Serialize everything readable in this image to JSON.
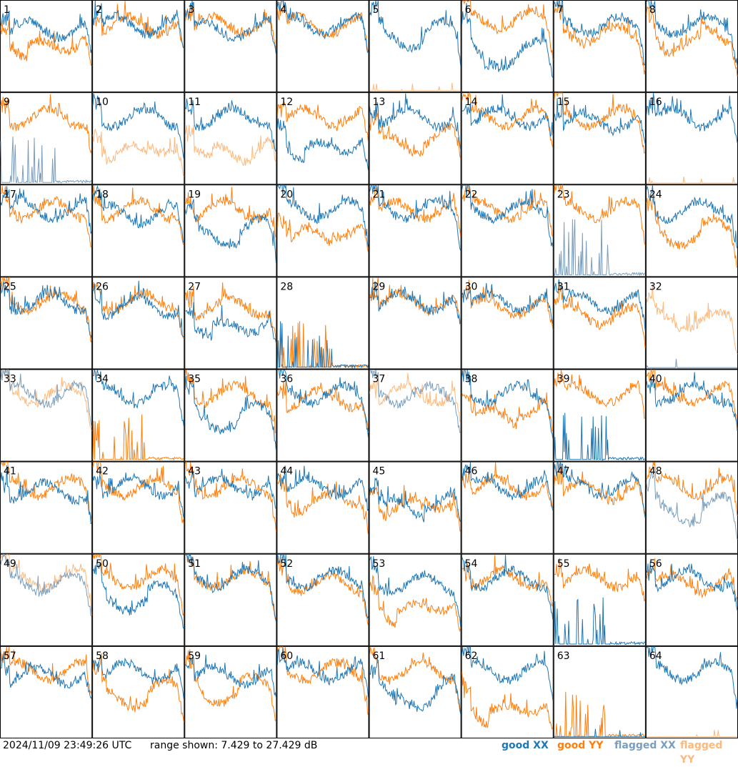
{
  "chart_data": {
    "type": "line",
    "title": "",
    "layout": "8x8 small multiples",
    "xlabel": "",
    "ylabel": "",
    "ylim": [
      7.429,
      27.429
    ],
    "y_unit": "dB",
    "grid": false,
    "legend_position": "bottom-right",
    "series_legend": [
      {
        "name": "good XX",
        "color": "#1f77b4"
      },
      {
        "name": "good YY",
        "color": "#ff7f0e"
      },
      {
        "name": "flagged XX",
        "color": "#7b9ebd"
      },
      {
        "name": "flagged YY",
        "color": "#fdb97d"
      }
    ],
    "panels": [
      {
        "id": 1,
        "xx": "good",
        "yy": "good",
        "xx_shape": "normal",
        "yy_shape": "dip",
        "xx_level": 21,
        "yy_level": 20
      },
      {
        "id": 2,
        "xx": "good",
        "yy": "good",
        "xx_shape": "normal",
        "yy_shape": "normal",
        "xx_level": 22,
        "yy_level": 22
      },
      {
        "id": 3,
        "xx": "good",
        "yy": "good",
        "xx_shape": "normal",
        "yy_shape": "normal",
        "xx_level": 21,
        "yy_level": 22
      },
      {
        "id": 4,
        "xx": "good",
        "yy": "good",
        "xx_shape": "normal",
        "yy_shape": "normal",
        "xx_level": 22,
        "yy_level": 22
      },
      {
        "id": 5,
        "xx": "good",
        "yy": "flagged",
        "xx_shape": "sag",
        "yy_shape": "dead",
        "xx_level": 22,
        "yy_level": 8
      },
      {
        "id": 6,
        "xx": "good",
        "yy": "good",
        "xx_shape": "dip",
        "yy_shape": "normal",
        "xx_level": 18,
        "yy_level": 23
      },
      {
        "id": 7,
        "xx": "good",
        "yy": "good",
        "xx_shape": "normal",
        "yy_shape": "normal",
        "xx_level": 22,
        "yy_level": 20
      },
      {
        "id": 8,
        "xx": "good",
        "yy": "good",
        "xx_shape": "normal",
        "yy_shape": "sag",
        "xx_level": 22,
        "yy_level": 21
      },
      {
        "id": 9,
        "xx": "flagged",
        "yy": "good",
        "xx_shape": "spiky",
        "yy_shape": "normal",
        "xx_level": 8,
        "yy_level": 22
      },
      {
        "id": 10,
        "xx": "good",
        "yy": "flagged",
        "xx_shape": "normal",
        "yy_shape": "sag",
        "xx_level": 22,
        "yy_level": 17
      },
      {
        "id": 11,
        "xx": "good",
        "yy": "flagged",
        "xx_shape": "normal",
        "yy_shape": "dip",
        "xx_level": 22,
        "yy_level": 17
      },
      {
        "id": 12,
        "xx": "good",
        "yy": "good",
        "xx_shape": "dip",
        "yy_shape": "normal",
        "xx_level": 18,
        "yy_level": 22
      },
      {
        "id": 13,
        "xx": "good",
        "yy": "good",
        "xx_shape": "normal",
        "yy_shape": "sag",
        "xx_level": 22,
        "yy_level": 19
      },
      {
        "id": 14,
        "xx": "good",
        "yy": "good",
        "xx_shape": "normal",
        "yy_shape": "normal",
        "xx_level": 22,
        "yy_level": 22
      },
      {
        "id": 15,
        "xx": "good",
        "yy": "good",
        "xx_shape": "normal",
        "yy_shape": "normal",
        "xx_level": 21,
        "yy_level": 22
      },
      {
        "id": 16,
        "xx": "good",
        "yy": "flagged",
        "xx_shape": "normal",
        "yy_shape": "dead",
        "xx_level": 22,
        "yy_level": 8
      },
      {
        "id": 17,
        "xx": "good",
        "yy": "good",
        "xx_shape": "normal",
        "yy_shape": "normal",
        "xx_level": 22,
        "yy_level": 22
      },
      {
        "id": 18,
        "xx": "good",
        "yy": "good",
        "xx_shape": "normal",
        "yy_shape": "normal",
        "xx_level": 21,
        "yy_level": 22
      },
      {
        "id": 19,
        "xx": "good",
        "yy": "good",
        "xx_shape": "sag",
        "yy_shape": "normal",
        "xx_level": 19,
        "yy_level": 22
      },
      {
        "id": 20,
        "xx": "good",
        "yy": "good",
        "xx_shape": "normal",
        "yy_shape": "sag",
        "xx_level": 22,
        "yy_level": 19
      },
      {
        "id": 21,
        "xx": "good",
        "yy": "good",
        "xx_shape": "normal",
        "yy_shape": "normal",
        "xx_level": 22,
        "yy_level": 22
      },
      {
        "id": 22,
        "xx": "good",
        "yy": "good",
        "xx_shape": "normal",
        "yy_shape": "normal",
        "xx_level": 22,
        "yy_level": 22
      },
      {
        "id": 23,
        "xx": "flagged",
        "yy": "good",
        "xx_shape": "spiky",
        "yy_shape": "normal",
        "xx_level": 10,
        "yy_level": 22
      },
      {
        "id": 24,
        "xx": "good",
        "yy": "good",
        "xx_shape": "normal",
        "yy_shape": "sag",
        "xx_level": 22,
        "yy_level": 19
      },
      {
        "id": 25,
        "xx": "good",
        "yy": "good",
        "xx_shape": "normal",
        "yy_shape": "normal",
        "xx_level": 22,
        "yy_level": 22
      },
      {
        "id": 26,
        "xx": "good",
        "yy": "good",
        "xx_shape": "normal",
        "yy_shape": "normal",
        "xx_level": 21,
        "yy_level": 22
      },
      {
        "id": 27,
        "xx": "good",
        "yy": "good",
        "xx_shape": "dip",
        "yy_shape": "normal",
        "xx_level": 19,
        "yy_level": 21
      },
      {
        "id": 28,
        "xx": "good",
        "yy": "good",
        "xx_shape": "spiky",
        "yy_shape": "spiky",
        "xx_level": 8,
        "yy_level": 8
      },
      {
        "id": 29,
        "xx": "good",
        "yy": "good",
        "xx_shape": "normal",
        "yy_shape": "normal",
        "xx_level": 22,
        "yy_level": 22
      },
      {
        "id": 30,
        "xx": "good",
        "yy": "good",
        "xx_shape": "normal",
        "yy_shape": "normal",
        "xx_level": 22,
        "yy_level": 21
      },
      {
        "id": 31,
        "xx": "good",
        "yy": "good",
        "xx_shape": "normal",
        "yy_shape": "normal",
        "xx_level": 22,
        "yy_level": 19
      },
      {
        "id": 32,
        "xx": "flagged",
        "yy": "flagged",
        "xx_shape": "dead",
        "yy_shape": "normal",
        "xx_level": 8,
        "yy_level": 18
      },
      {
        "id": 33,
        "xx": "flagged",
        "yy": "flagged",
        "xx_shape": "normal",
        "yy_shape": "normal",
        "xx_level": 22,
        "yy_level": 22
      },
      {
        "id": 34,
        "xx": "good",
        "yy": "good",
        "xx_shape": "normal",
        "yy_shape": "spiky",
        "xx_level": 22,
        "yy_level": 8
      },
      {
        "id": 35,
        "xx": "good",
        "yy": "good",
        "xx_shape": "sag",
        "yy_shape": "normal",
        "xx_level": 19,
        "yy_level": 22
      },
      {
        "id": 36,
        "xx": "good",
        "yy": "good",
        "xx_shape": "normal",
        "yy_shape": "normal",
        "xx_level": 22,
        "yy_level": 21
      },
      {
        "id": 37,
        "xx": "flagged",
        "yy": "flagged",
        "xx_shape": "normal",
        "yy_shape": "normal",
        "xx_level": 22,
        "yy_level": 22
      },
      {
        "id": 38,
        "xx": "good",
        "yy": "good",
        "xx_shape": "normal",
        "yy_shape": "sag",
        "xx_level": 22,
        "yy_level": 20
      },
      {
        "id": 39,
        "xx": "good",
        "yy": "good",
        "xx_shape": "spiky",
        "yy_shape": "normal",
        "xx_level": 8,
        "yy_level": 22
      },
      {
        "id": 40,
        "xx": "good",
        "yy": "good",
        "xx_shape": "normal",
        "yy_shape": "normal",
        "xx_level": 22,
        "yy_level": 22
      },
      {
        "id": 41,
        "xx": "good",
        "yy": "good",
        "xx_shape": "normal",
        "yy_shape": "normal",
        "xx_level": 21,
        "yy_level": 22
      },
      {
        "id": 42,
        "xx": "good",
        "yy": "good",
        "xx_shape": "normal",
        "yy_shape": "normal",
        "xx_level": 22,
        "yy_level": 22
      },
      {
        "id": 43,
        "xx": "good",
        "yy": "good",
        "xx_shape": "normal",
        "yy_shape": "normal",
        "xx_level": 22,
        "yy_level": 22
      },
      {
        "id": 44,
        "xx": "good",
        "yy": "good",
        "xx_shape": "normal",
        "yy_shape": "sag",
        "xx_level": 22,
        "yy_level": 21
      },
      {
        "id": 45,
        "xx": "good",
        "yy": "good",
        "xx_shape": "sag",
        "yy_shape": "sag",
        "xx_level": 20,
        "yy_level": 20
      },
      {
        "id": 46,
        "xx": "good",
        "yy": "good",
        "xx_shape": "normal",
        "yy_shape": "normal",
        "xx_level": 22,
        "yy_level": 22
      },
      {
        "id": 47,
        "xx": "good",
        "yy": "good",
        "xx_shape": "normal",
        "yy_shape": "normal",
        "xx_level": 22,
        "yy_level": 21
      },
      {
        "id": 48,
        "xx": "flagged",
        "yy": "good",
        "xx_shape": "sag",
        "yy_shape": "normal",
        "xx_level": 19,
        "yy_level": 22
      },
      {
        "id": 49,
        "xx": "flagged",
        "yy": "flagged",
        "xx_shape": "normal",
        "yy_shape": "normal",
        "xx_level": 21,
        "yy_level": 22
      },
      {
        "id": 50,
        "xx": "good",
        "yy": "good",
        "xx_shape": "sag",
        "yy_shape": "normal",
        "xx_level": 20,
        "yy_level": 22
      },
      {
        "id": 51,
        "xx": "good",
        "yy": "good",
        "xx_shape": "normal",
        "yy_shape": "normal",
        "xx_level": 22,
        "yy_level": 22
      },
      {
        "id": 52,
        "xx": "good",
        "yy": "good",
        "xx_shape": "normal",
        "yy_shape": "normal",
        "xx_level": 22,
        "yy_level": 21
      },
      {
        "id": 53,
        "xx": "good",
        "yy": "good",
        "xx_shape": "normal",
        "yy_shape": "dip",
        "xx_level": 21,
        "yy_level": 18
      },
      {
        "id": 54,
        "xx": "good",
        "yy": "good",
        "xx_shape": "normal",
        "yy_shape": "normal",
        "xx_level": 22,
        "yy_level": 22
      },
      {
        "id": 55,
        "xx": "good",
        "yy": "good",
        "xx_shape": "spiky",
        "yy_shape": "normal",
        "xx_level": 8,
        "yy_level": 22
      },
      {
        "id": 56,
        "xx": "good",
        "yy": "good",
        "xx_shape": "normal",
        "yy_shape": "normal",
        "xx_level": 22,
        "yy_level": 21
      },
      {
        "id": 57,
        "xx": "good",
        "yy": "good",
        "xx_shape": "normal",
        "yy_shape": "normal",
        "xx_level": 21,
        "yy_level": 22
      },
      {
        "id": 58,
        "xx": "good",
        "yy": "good",
        "xx_shape": "normal",
        "yy_shape": "sag",
        "xx_level": 22,
        "yy_level": 19
      },
      {
        "id": 59,
        "xx": "good",
        "yy": "good",
        "xx_shape": "normal",
        "yy_shape": "sag",
        "xx_level": 21,
        "yy_level": 20
      },
      {
        "id": 60,
        "xx": "good",
        "yy": "good",
        "xx_shape": "normal",
        "yy_shape": "normal",
        "xx_level": 22,
        "yy_level": 22
      },
      {
        "id": 61,
        "xx": "good",
        "yy": "good",
        "xx_shape": "dip",
        "yy_shape": "normal",
        "xx_level": 19,
        "yy_level": 22
      },
      {
        "id": 62,
        "xx": "good",
        "yy": "good",
        "xx_shape": "normal",
        "yy_shape": "dip",
        "xx_level": 22,
        "yy_level": 16
      },
      {
        "id": 63,
        "xx": "good",
        "yy": "good",
        "xx_shape": "dead",
        "yy_shape": "spiky",
        "xx_level": 8,
        "yy_level": 8
      },
      {
        "id": 64,
        "xx": "good",
        "yy": "flagged",
        "xx_shape": "normal",
        "yy_shape": "dead",
        "xx_level": 22,
        "yy_level": 8
      }
    ]
  },
  "footer": {
    "timestamp": "2024/11/09 23:49:26 UTC",
    "range_text": "range shown: 7.429 to 27.429 dB",
    "legend_good_xx": "good XX",
    "legend_good_yy": "good YY",
    "legend_flagged_xx": "flagged XX",
    "legend_flagged_yy": "flagged YY",
    "color_good_xx": "#1f77b4",
    "color_good_yy": "#ff7f0e",
    "color_flagged_xx": "#7b9ebd",
    "color_flagged_yy": "#fdb97d"
  }
}
